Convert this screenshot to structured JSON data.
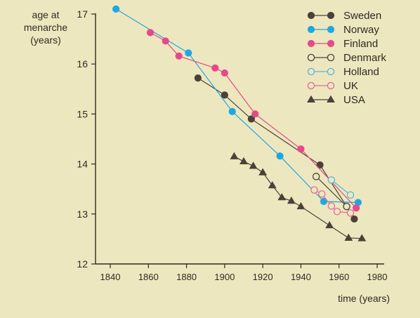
{
  "chart_data": {
    "type": "line",
    "ylabel_lines": [
      "age at",
      "menarche",
      "(years)"
    ],
    "xlabel": "time (years)",
    "xlim": [
      1835,
      1980
    ],
    "ylim": [
      12,
      17
    ],
    "x_ticks": [
      1840,
      1860,
      1880,
      1900,
      1920,
      1940,
      1960,
      1980
    ],
    "y_ticks": [
      12,
      13,
      14,
      15,
      16,
      17
    ],
    "legend_position": "top-right",
    "series": [
      {
        "name": "Sweden",
        "color": "#4a4238",
        "marker": "circle",
        "filled": true,
        "x": [
          1886,
          1900,
          1914,
          1950,
          1964,
          1968
        ],
        "y": [
          15.72,
          15.38,
          14.9,
          13.98,
          13.15,
          12.9
        ]
      },
      {
        "name": "Norway",
        "color": "#1ea8e0",
        "marker": "circle",
        "filled": true,
        "x": [
          1843,
          1881,
          1904,
          1929,
          1952,
          1970
        ],
        "y": [
          17.1,
          16.22,
          15.05,
          14.16,
          13.25,
          13.23
        ]
      },
      {
        "name": "Finland",
        "color": "#e44a8a",
        "marker": "circle",
        "filled": true,
        "x": [
          1861,
          1869,
          1876,
          1895,
          1900,
          1916,
          1940,
          1969
        ],
        "y": [
          16.63,
          16.46,
          16.16,
          15.92,
          15.82,
          15.0,
          14.3,
          13.12
        ]
      },
      {
        "name": "Denmark",
        "color": "#4a4238",
        "marker": "circle",
        "filled": false,
        "x": [
          1948,
          1964
        ],
        "y": [
          13.75,
          13.15
        ]
      },
      {
        "name": "Holland",
        "color": "#5ab4e0",
        "marker": "circle",
        "filled": false,
        "x": [
          1956,
          1966
        ],
        "y": [
          13.68,
          13.38
        ]
      },
      {
        "name": "UK",
        "color": "#e46a9a",
        "marker": "circle",
        "filled": false,
        "x": [
          1947,
          1951,
          1956,
          1959,
          1966
        ],
        "y": [
          13.48,
          13.4,
          13.16,
          13.05,
          13.02
        ]
      },
      {
        "name": "USA",
        "color": "#4a4238",
        "marker": "triangle",
        "filled": true,
        "x": [
          1905,
          1910,
          1915,
          1920,
          1925,
          1930,
          1935,
          1940,
          1955,
          1965,
          1972
        ],
        "y": [
          14.15,
          14.05,
          13.96,
          13.83,
          13.57,
          13.33,
          13.26,
          13.15,
          12.77,
          12.52,
          12.51
        ]
      }
    ]
  }
}
